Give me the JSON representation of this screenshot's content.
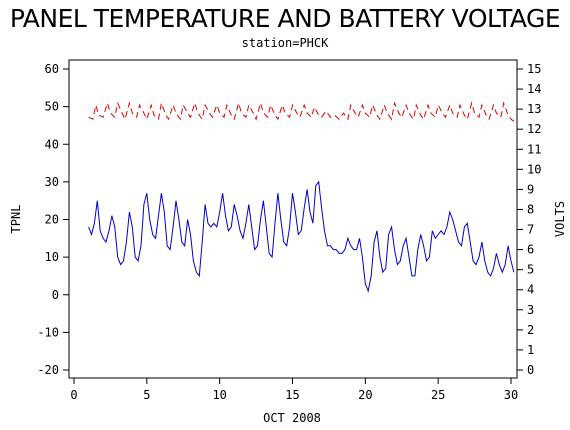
{
  "chart_data": {
    "type": "line",
    "title": "PANEL TEMPERATURE AND BATTERY VOLTAGE",
    "subtitle": "station=PHCK",
    "xlabel": "OCT 2008",
    "ylabel_left": "TPNL",
    "ylabel_right": "VOLTS",
    "xlim": [
      0,
      30
    ],
    "xticks": [
      0,
      5,
      10,
      15,
      20,
      25,
      30
    ],
    "ylim_left": [
      -20,
      60
    ],
    "yticks_left": [
      -20,
      -10,
      0,
      10,
      20,
      30,
      40,
      50,
      60
    ],
    "ylim_right": [
      0,
      15
    ],
    "yticks_right": [
      0,
      1,
      2,
      3,
      4,
      5,
      6,
      7,
      8,
      9,
      10,
      11,
      12,
      13,
      14,
      15
    ],
    "series": [
      {
        "axis": "left",
        "color": "#0000cc",
        "style": "solid",
        "points": [
          [
            1.0,
            18
          ],
          [
            1.2,
            16
          ],
          [
            1.4,
            19
          ],
          [
            1.6,
            25
          ],
          [
            1.8,
            17
          ],
          [
            2.0,
            15
          ],
          [
            2.2,
            14
          ],
          [
            2.4,
            17
          ],
          [
            2.6,
            21
          ],
          [
            2.8,
            18
          ],
          [
            3.0,
            10
          ],
          [
            3.2,
            8
          ],
          [
            3.4,
            9
          ],
          [
            3.6,
            14
          ],
          [
            3.8,
            22
          ],
          [
            4.0,
            18
          ],
          [
            4.2,
            10
          ],
          [
            4.4,
            9
          ],
          [
            4.6,
            13
          ],
          [
            4.8,
            24
          ],
          [
            5.0,
            27
          ],
          [
            5.2,
            20
          ],
          [
            5.4,
            16
          ],
          [
            5.6,
            15
          ],
          [
            5.8,
            21
          ],
          [
            6.0,
            27
          ],
          [
            6.2,
            22
          ],
          [
            6.4,
            13
          ],
          [
            6.6,
            12
          ],
          [
            6.8,
            18
          ],
          [
            7.0,
            25
          ],
          [
            7.2,
            20
          ],
          [
            7.4,
            14
          ],
          [
            7.6,
            13
          ],
          [
            7.8,
            20
          ],
          [
            8.0,
            16
          ],
          [
            8.2,
            9
          ],
          [
            8.4,
            6
          ],
          [
            8.6,
            5
          ],
          [
            8.8,
            14
          ],
          [
            9.0,
            24
          ],
          [
            9.2,
            19
          ],
          [
            9.4,
            18
          ],
          [
            9.6,
            19
          ],
          [
            9.8,
            18
          ],
          [
            10.0,
            22
          ],
          [
            10.2,
            27
          ],
          [
            10.4,
            21
          ],
          [
            10.6,
            17
          ],
          [
            10.8,
            18
          ],
          [
            11.0,
            24
          ],
          [
            11.2,
            21
          ],
          [
            11.4,
            17
          ],
          [
            11.6,
            15
          ],
          [
            11.8,
            19
          ],
          [
            12.0,
            24
          ],
          [
            12.2,
            18
          ],
          [
            12.4,
            12
          ],
          [
            12.6,
            13
          ],
          [
            12.8,
            20
          ],
          [
            13.0,
            25
          ],
          [
            13.2,
            18
          ],
          [
            13.4,
            11
          ],
          [
            13.6,
            10
          ],
          [
            13.8,
            19
          ],
          [
            14.0,
            27
          ],
          [
            14.2,
            20
          ],
          [
            14.4,
            14
          ],
          [
            14.6,
            13
          ],
          [
            14.8,
            18
          ],
          [
            15.0,
            27
          ],
          [
            15.2,
            22
          ],
          [
            15.4,
            16
          ],
          [
            15.6,
            17
          ],
          [
            15.8,
            23
          ],
          [
            16.0,
            28
          ],
          [
            16.2,
            22
          ],
          [
            16.4,
            19
          ],
          [
            16.6,
            29
          ],
          [
            16.8,
            30
          ],
          [
            17.0,
            23
          ],
          [
            17.2,
            17
          ],
          [
            17.4,
            13
          ],
          [
            17.6,
            13
          ],
          [
            17.8,
            12
          ],
          [
            18.0,
            12
          ],
          [
            18.2,
            11
          ],
          [
            18.4,
            11
          ],
          [
            18.6,
            12
          ],
          [
            18.8,
            15
          ],
          [
            19.0,
            13
          ],
          [
            19.2,
            12
          ],
          [
            19.4,
            12
          ],
          [
            19.6,
            15
          ],
          [
            19.8,
            10
          ],
          [
            20.0,
            3
          ],
          [
            20.2,
            1
          ],
          [
            20.4,
            5
          ],
          [
            20.6,
            14
          ],
          [
            20.8,
            17
          ],
          [
            21.0,
            10
          ],
          [
            21.2,
            6
          ],
          [
            21.4,
            7
          ],
          [
            21.6,
            16
          ],
          [
            21.8,
            18
          ],
          [
            22.0,
            12
          ],
          [
            22.2,
            8
          ],
          [
            22.4,
            9
          ],
          [
            22.6,
            13
          ],
          [
            22.8,
            15
          ],
          [
            23.0,
            10
          ],
          [
            23.2,
            5
          ],
          [
            23.4,
            5
          ],
          [
            23.6,
            12
          ],
          [
            23.8,
            16
          ],
          [
            24.0,
            13
          ],
          [
            24.2,
            9
          ],
          [
            24.4,
            10
          ],
          [
            24.6,
            17
          ],
          [
            24.8,
            15
          ],
          [
            25.0,
            16
          ],
          [
            25.2,
            17
          ],
          [
            25.4,
            16
          ],
          [
            25.6,
            18
          ],
          [
            25.8,
            22
          ],
          [
            26.0,
            20
          ],
          [
            26.2,
            17
          ],
          [
            26.4,
            14
          ],
          [
            26.6,
            13
          ],
          [
            26.8,
            18
          ],
          [
            27.0,
            19
          ],
          [
            27.2,
            14
          ],
          [
            27.4,
            9
          ],
          [
            27.6,
            8
          ],
          [
            27.8,
            10
          ],
          [
            28.0,
            14
          ],
          [
            28.2,
            9
          ],
          [
            28.4,
            6
          ],
          [
            28.6,
            5
          ],
          [
            28.8,
            7
          ],
          [
            29.0,
            11
          ],
          [
            29.2,
            8
          ],
          [
            29.4,
            6
          ],
          [
            29.6,
            8
          ],
          [
            29.8,
            13
          ],
          [
            30.0,
            9
          ],
          [
            30.2,
            6
          ]
        ]
      },
      {
        "axis": "right",
        "color": "#dd0000",
        "style": "dashed",
        "points": [
          [
            1.0,
            12.6
          ],
          [
            1.3,
            12.5
          ],
          [
            1.5,
            13.2
          ],
          [
            1.7,
            12.7
          ],
          [
            2.0,
            12.6
          ],
          [
            2.3,
            13.3
          ],
          [
            2.5,
            12.8
          ],
          [
            2.8,
            12.6
          ],
          [
            3.0,
            13.3
          ],
          [
            3.3,
            12.8
          ],
          [
            3.5,
            12.5
          ],
          [
            3.8,
            13.3
          ],
          [
            4.0,
            12.8
          ],
          [
            4.3,
            12.6
          ],
          [
            4.5,
            13.2
          ],
          [
            4.8,
            12.8
          ],
          [
            5.0,
            12.5
          ],
          [
            5.3,
            13.2
          ],
          [
            5.5,
            12.7
          ],
          [
            5.8,
            12.5
          ],
          [
            6.0,
            13.3
          ],
          [
            6.3,
            12.7
          ],
          [
            6.5,
            12.5
          ],
          [
            6.8,
            13.2
          ],
          [
            7.0,
            12.8
          ],
          [
            7.3,
            12.5
          ],
          [
            7.5,
            13.2
          ],
          [
            7.8,
            12.8
          ],
          [
            8.0,
            12.6
          ],
          [
            8.3,
            13.3
          ],
          [
            8.5,
            12.8
          ],
          [
            8.8,
            12.5
          ],
          [
            9.0,
            13.2
          ],
          [
            9.3,
            12.8
          ],
          [
            9.5,
            12.6
          ],
          [
            9.8,
            13.2
          ],
          [
            10.0,
            12.8
          ],
          [
            10.3,
            12.6
          ],
          [
            10.5,
            13.2
          ],
          [
            10.8,
            12.7
          ],
          [
            11.0,
            12.5
          ],
          [
            11.3,
            13.3
          ],
          [
            11.5,
            12.8
          ],
          [
            11.8,
            12.6
          ],
          [
            12.0,
            13.2
          ],
          [
            12.3,
            12.8
          ],
          [
            12.5,
            12.5
          ],
          [
            12.8,
            13.3
          ],
          [
            13.0,
            12.8
          ],
          [
            13.3,
            12.6
          ],
          [
            13.5,
            13.2
          ],
          [
            13.8,
            12.7
          ],
          [
            14.0,
            12.5
          ],
          [
            14.3,
            13.2
          ],
          [
            14.5,
            12.8
          ],
          [
            14.8,
            12.6
          ],
          [
            15.0,
            13.2
          ],
          [
            15.3,
            12.8
          ],
          [
            15.5,
            12.6
          ],
          [
            15.8,
            13.2
          ],
          [
            16.0,
            12.8
          ],
          [
            16.3,
            12.6
          ],
          [
            16.5,
            13.1
          ],
          [
            16.8,
            12.7
          ],
          [
            17.0,
            12.6
          ],
          [
            17.3,
            12.9
          ],
          [
            17.6,
            12.6
          ],
          [
            17.9,
            12.7
          ],
          [
            18.2,
            12.5
          ],
          [
            18.5,
            12.8
          ],
          [
            18.8,
            12.5
          ],
          [
            19.0,
            13.2
          ],
          [
            19.3,
            12.8
          ],
          [
            19.5,
            12.6
          ],
          [
            19.8,
            13.2
          ],
          [
            20.0,
            12.8
          ],
          [
            20.3,
            12.6
          ],
          [
            20.5,
            13.2
          ],
          [
            20.8,
            12.7
          ],
          [
            21.0,
            12.5
          ],
          [
            21.3,
            13.2
          ],
          [
            21.5,
            12.8
          ],
          [
            21.8,
            12.5
          ],
          [
            22.0,
            13.3
          ],
          [
            22.3,
            12.8
          ],
          [
            22.5,
            12.6
          ],
          [
            22.8,
            13.2
          ],
          [
            23.0,
            12.8
          ],
          [
            23.3,
            12.5
          ],
          [
            23.5,
            13.2
          ],
          [
            23.8,
            12.7
          ],
          [
            24.0,
            12.5
          ],
          [
            24.3,
            13.2
          ],
          [
            24.5,
            12.8
          ],
          [
            24.8,
            12.6
          ],
          [
            25.0,
            13.2
          ],
          [
            25.3,
            12.8
          ],
          [
            25.5,
            12.6
          ],
          [
            25.8,
            13.2
          ],
          [
            26.0,
            12.8
          ],
          [
            26.3,
            12.6
          ],
          [
            26.5,
            13.2
          ],
          [
            26.8,
            12.7
          ],
          [
            27.0,
            12.5
          ],
          [
            27.3,
            13.3
          ],
          [
            27.5,
            12.8
          ],
          [
            27.8,
            12.6
          ],
          [
            28.0,
            13.2
          ],
          [
            28.3,
            12.7
          ],
          [
            28.5,
            12.5
          ],
          [
            28.8,
            13.2
          ],
          [
            29.0,
            12.8
          ],
          [
            29.3,
            12.6
          ],
          [
            29.5,
            13.3
          ],
          [
            29.8,
            12.7
          ],
          [
            30.0,
            12.5
          ],
          [
            30.2,
            12.4
          ]
        ]
      }
    ]
  }
}
